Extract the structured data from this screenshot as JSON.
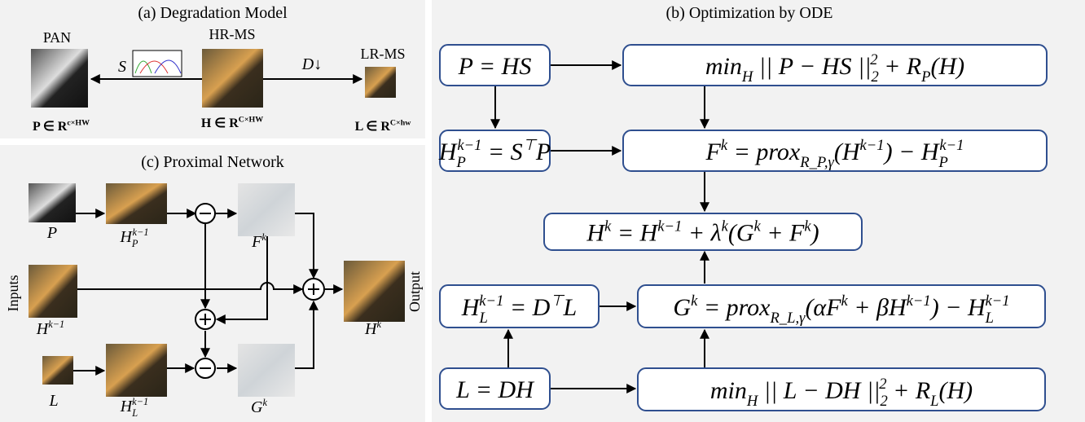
{
  "panel_a": {
    "title": "(a) Degradation Model",
    "pan": "PAN",
    "hrms": "HR-MS",
    "lrms": "LR-MS",
    "s": "S",
    "d": "D↓",
    "p_def": [
      {
        "t": "P ∈ R"
      },
      {
        "sup": "c×HW"
      }
    ],
    "h_def": [
      {
        "t": "H ∈ R"
      },
      {
        "sup": "C×HW"
      }
    ],
    "l_def": [
      {
        "t": "L ∈ R"
      },
      {
        "sup": "C×hw"
      }
    ]
  },
  "panel_b": {
    "title": "(b) Optimization by ODE",
    "boxes": [
      [
        {
          "t": "P = HS"
        }
      ],
      [
        {
          "t": "min"
        },
        {
          "sub": "H"
        },
        {
          "t": " || P − HS ||"
        },
        {
          "sub": "2"
        },
        {
          "sup": "2"
        },
        {
          "t": " + R"
        },
        {
          "sub": "P"
        },
        {
          "t": "(H)"
        }
      ],
      [
        {
          "t": "H"
        },
        {
          "sub": "P"
        },
        {
          "sup": "k−1"
        },
        {
          "t": " = S"
        },
        {
          "sup": "⊤"
        },
        {
          "t": "P"
        }
      ],
      [
        {
          "t": "F"
        },
        {
          "sup": "k"
        },
        {
          "t": " = prox"
        },
        {
          "sub": "R_P,γ"
        },
        {
          "t": "(H"
        },
        {
          "sup": "k−1"
        },
        {
          "t": ") − H"
        },
        {
          "sub": "P"
        },
        {
          "sup": "k−1"
        }
      ],
      [
        {
          "t": "H"
        },
        {
          "sup": "k"
        },
        {
          "t": " = H"
        },
        {
          "sup": "k−1"
        },
        {
          "t": " + λ"
        },
        {
          "sup": "k"
        },
        {
          "t": "(G"
        },
        {
          "sup": "k"
        },
        {
          "t": " + F"
        },
        {
          "sup": "k"
        },
        {
          "t": ")"
        }
      ],
      [
        {
          "t": "H"
        },
        {
          "sub": "L"
        },
        {
          "sup": "k−1"
        },
        {
          "t": " = D"
        },
        {
          "sup": "⊤"
        },
        {
          "t": "L"
        }
      ],
      [
        {
          "t": "G"
        },
        {
          "sup": "k"
        },
        {
          "t": " = prox"
        },
        {
          "sub": "R_L,γ"
        },
        {
          "t": "(αF"
        },
        {
          "sup": "k"
        },
        {
          "t": " + βH"
        },
        {
          "sup": "k−1"
        },
        {
          "t": ") − H"
        },
        {
          "sub": "L"
        },
        {
          "sup": "k−1"
        }
      ],
      [
        {
          "t": "L = DH"
        }
      ],
      [
        {
          "t": "min"
        },
        {
          "sub": "H"
        },
        {
          "t": " || L − DH ||"
        },
        {
          "sub": "2"
        },
        {
          "sup": "2"
        },
        {
          "t": " + R"
        },
        {
          "sub": "L"
        },
        {
          "t": "(H)"
        }
      ]
    ]
  },
  "panel_c": {
    "title": "(c) Proximal Network",
    "inputs": "Inputs",
    "output": "Output",
    "labels": [
      [
        {
          "t": "P"
        }
      ],
      [
        {
          "t": "H"
        },
        {
          "sub": "P"
        },
        {
          "sup": "k−1"
        }
      ],
      [
        {
          "t": "F"
        },
        {
          "sup": "k"
        }
      ],
      [
        {
          "t": "H"
        },
        {
          "sup": "k−1"
        }
      ],
      [
        {
          "t": "H"
        },
        {
          "sup": "k"
        }
      ],
      [
        {
          "t": "L"
        }
      ],
      [
        {
          "t": "H"
        },
        {
          "sub": "L"
        },
        {
          "sup": "k−1"
        }
      ],
      [
        {
          "t": "G"
        },
        {
          "sup": "k"
        }
      ]
    ]
  }
}
